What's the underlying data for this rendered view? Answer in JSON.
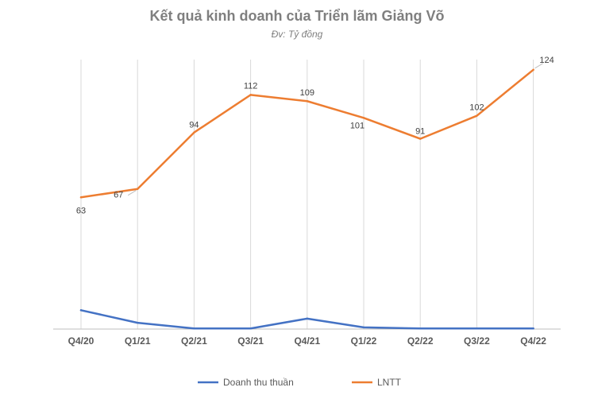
{
  "title": "Kết quả kinh doanh của Triển lãm Giảng Võ",
  "subtitle": "Đv: Tỷ đồng",
  "chart_data": {
    "type": "line",
    "categories": [
      "Q4/20",
      "Q1/21",
      "Q2/21",
      "Q3/21",
      "Q4/21",
      "Q1/22",
      "Q2/22",
      "Q3/22",
      "Q4/22"
    ],
    "series": [
      {
        "name": "Doanh thu thuần",
        "color": "#4472c4",
        "values": [
          9,
          3,
          0.3,
          0.3,
          5,
          0.8,
          0.3,
          0.3,
          0.3
        ],
        "show_labels": false
      },
      {
        "name": "LNTT",
        "color": "#ed7d31",
        "values": [
          63,
          67,
          94,
          112,
          109,
          101,
          91,
          102,
          124
        ],
        "show_labels": true
      }
    ],
    "ylim": [
      0,
      130
    ],
    "grid": "vertical",
    "legend": "bottom"
  }
}
